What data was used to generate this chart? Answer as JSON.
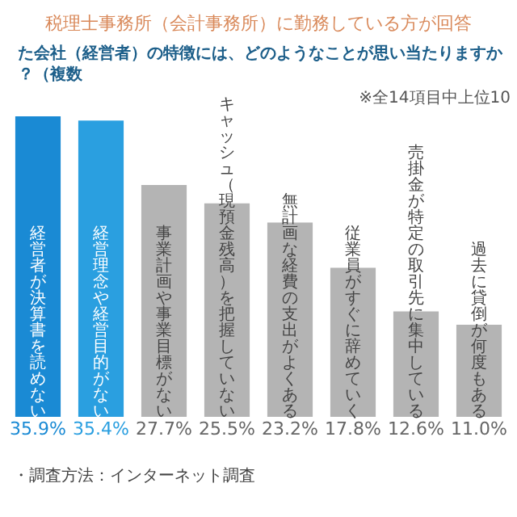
{
  "chart_data": {
    "type": "bar",
    "title": "税理士事務所（会計事務所）に勤務している方が回答",
    "subtitle": "た会社（経営者）の特徴には、どのようなことが思い当たりますか？（複数",
    "categories": [
      "経営者が決算書を読めない",
      "経営理念や経営目的がない",
      "事業計画や事業目標がない",
      "キャッシュ（現預金残高）を把握していない",
      "無計画な経費の支出がよくある",
      "従業員がすぐに辞めていく",
      "売掛金が特定の取引先に集中している",
      "過去に貸倒が何度もある"
    ],
    "values": [
      35.9,
      35.4,
      27.7,
      25.5,
      23.2,
      17.8,
      12.6,
      11.0
    ],
    "colors": [
      "#1a8ad4",
      "#2a9fe0",
      "#b4b4b4",
      "#b4b4b4",
      "#b4b4b4",
      "#b4b4b4",
      "#b4b4b4",
      "#b4b4b4"
    ],
    "value_labels": [
      "35.9%",
      "35.4%",
      "27.7%",
      "25.5%",
      "23.2%",
      "17.8%",
      "12.6%",
      "11.0%"
    ],
    "annotations": [
      "※全14項目中上位10",
      "・調査方法：インターネット調査"
    ],
    "grid": false
  }
}
